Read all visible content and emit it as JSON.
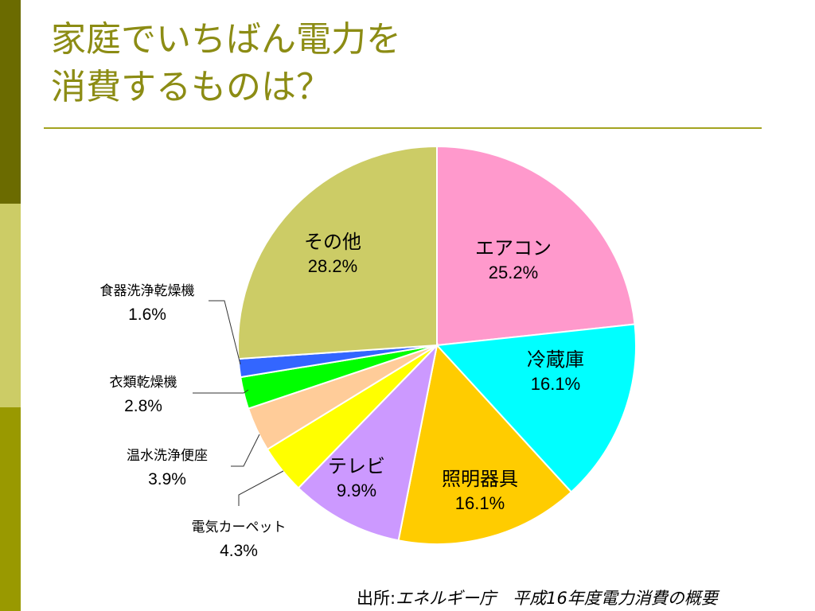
{
  "title": {
    "line1": "家庭でいちばん電力を",
    "line2": "消費するものは？"
  },
  "source": {
    "prefix": "出所:",
    "text": "エネルギー庁　平成16年度電力消費の概要"
  },
  "chart_data": {
    "type": "pie",
    "slices": [
      {
        "label": "エアコン",
        "pct_label": "25.2%",
        "value": 25.2,
        "color": "#ff99cc"
      },
      {
        "label": "冷蔵庫",
        "pct_label": "16.1%",
        "value": 16.1,
        "color": "#00ffff"
      },
      {
        "label": "照明器具",
        "pct_label": "16.1%",
        "value": 16.1,
        "color": "#ffcc00"
      },
      {
        "label": "テレビ",
        "pct_label": "9.9%",
        "value": 9.9,
        "color": "#cc99ff"
      },
      {
        "label": "電気カーペット",
        "pct_label": "4.3%",
        "value": 4.3,
        "color": "#ffff00"
      },
      {
        "label": "温水洗浄便座",
        "pct_label": "3.9%",
        "value": 3.9,
        "color": "#ffcc99"
      },
      {
        "label": "衣類乾燥機",
        "pct_label": "2.8%",
        "value": 2.8,
        "color": "#00ff00"
      },
      {
        "label": "食器洗浄乾燥機",
        "pct_label": "1.6%",
        "value": 1.6,
        "color": "#3366ff"
      },
      {
        "label": "その他",
        "pct_label": "28.2%",
        "value": 28.2,
        "color": "#cccc66"
      }
    ]
  }
}
